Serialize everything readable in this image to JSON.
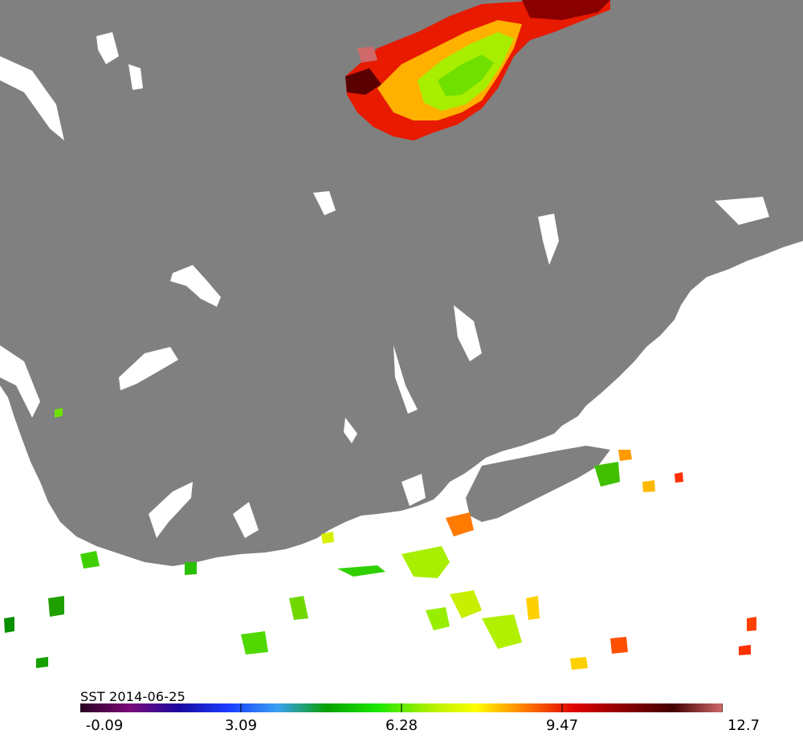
{
  "map": {
    "variable": "SST",
    "date": "2014-06-25",
    "legend_title": "SST 2014-06-25",
    "land_color": "#808080",
    "cloud_color": "#ffffff",
    "legend": {
      "min": -0.09,
      "max": 12.7,
      "tick_labels": [
        "-0.09",
        "3.09",
        "6.28",
        "9.47",
        "12.7"
      ],
      "colorscale": [
        "#2b0022",
        "#7a0a78",
        "#1a0aa0",
        "#1a3cff",
        "#3aa0f0",
        "#08a000",
        "#18e800",
        "#a8ee00",
        "#ffff00",
        "#ff7a00",
        "#e00000",
        "#8a0000",
        "#440000",
        "#d06a6a"
      ]
    }
  }
}
